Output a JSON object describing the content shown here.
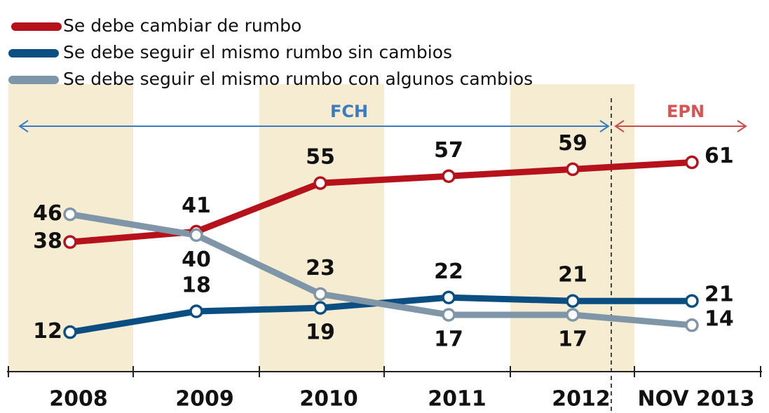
{
  "chart_data": {
    "type": "line",
    "categories": [
      "2008",
      "2009",
      "2010",
      "2011",
      "2012",
      "NOV 2013"
    ],
    "series": [
      {
        "name": "Se debe cambiar de rumbo",
        "color": "#b5121b",
        "values": [
          38,
          41,
          55,
          57,
          59,
          61
        ]
      },
      {
        "name": "Se debe seguir el mismo rumbo sin cambios",
        "color": "#0b4f82",
        "values": [
          12,
          18,
          19,
          22,
          21,
          21
        ]
      },
      {
        "name": "Se debe seguir el mismo rumbo con algunos cambios",
        "color": "#7f96a8",
        "values": [
          46,
          40,
          23,
          17,
          17,
          14
        ]
      }
    ],
    "ylim": [
      0,
      70
    ],
    "annotations": [
      {
        "text": "FCH",
        "color": "#3a7cc4"
      },
      {
        "text": "EPN",
        "color": "#d9534f"
      }
    ]
  }
}
